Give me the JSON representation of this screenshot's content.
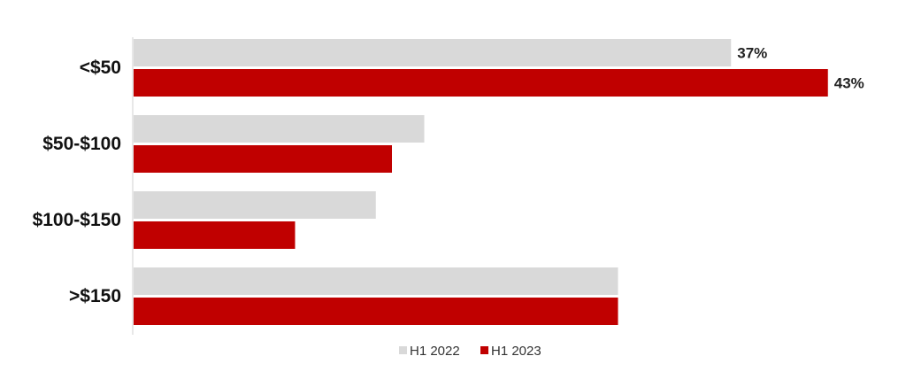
{
  "chart_data": {
    "type": "bar",
    "orientation": "horizontal",
    "categories": [
      "<$50",
      "$50-$100",
      "$100-$150",
      ">$150"
    ],
    "series": [
      {
        "name": "H1 2022",
        "color": "#d9d9d9",
        "values": [
          37,
          18,
          15,
          30
        ]
      },
      {
        "name": "H1 2023",
        "color": "#c00000",
        "values": [
          43,
          16,
          10,
          30
        ]
      }
    ],
    "data_labels": [
      {
        "series": 0,
        "category": 0,
        "text": "37%"
      },
      {
        "series": 1,
        "category": 0,
        "text": "43%"
      }
    ],
    "unit": "%",
    "xlim": [
      0,
      47
    ],
    "grid": false,
    "legend": "bottom"
  }
}
